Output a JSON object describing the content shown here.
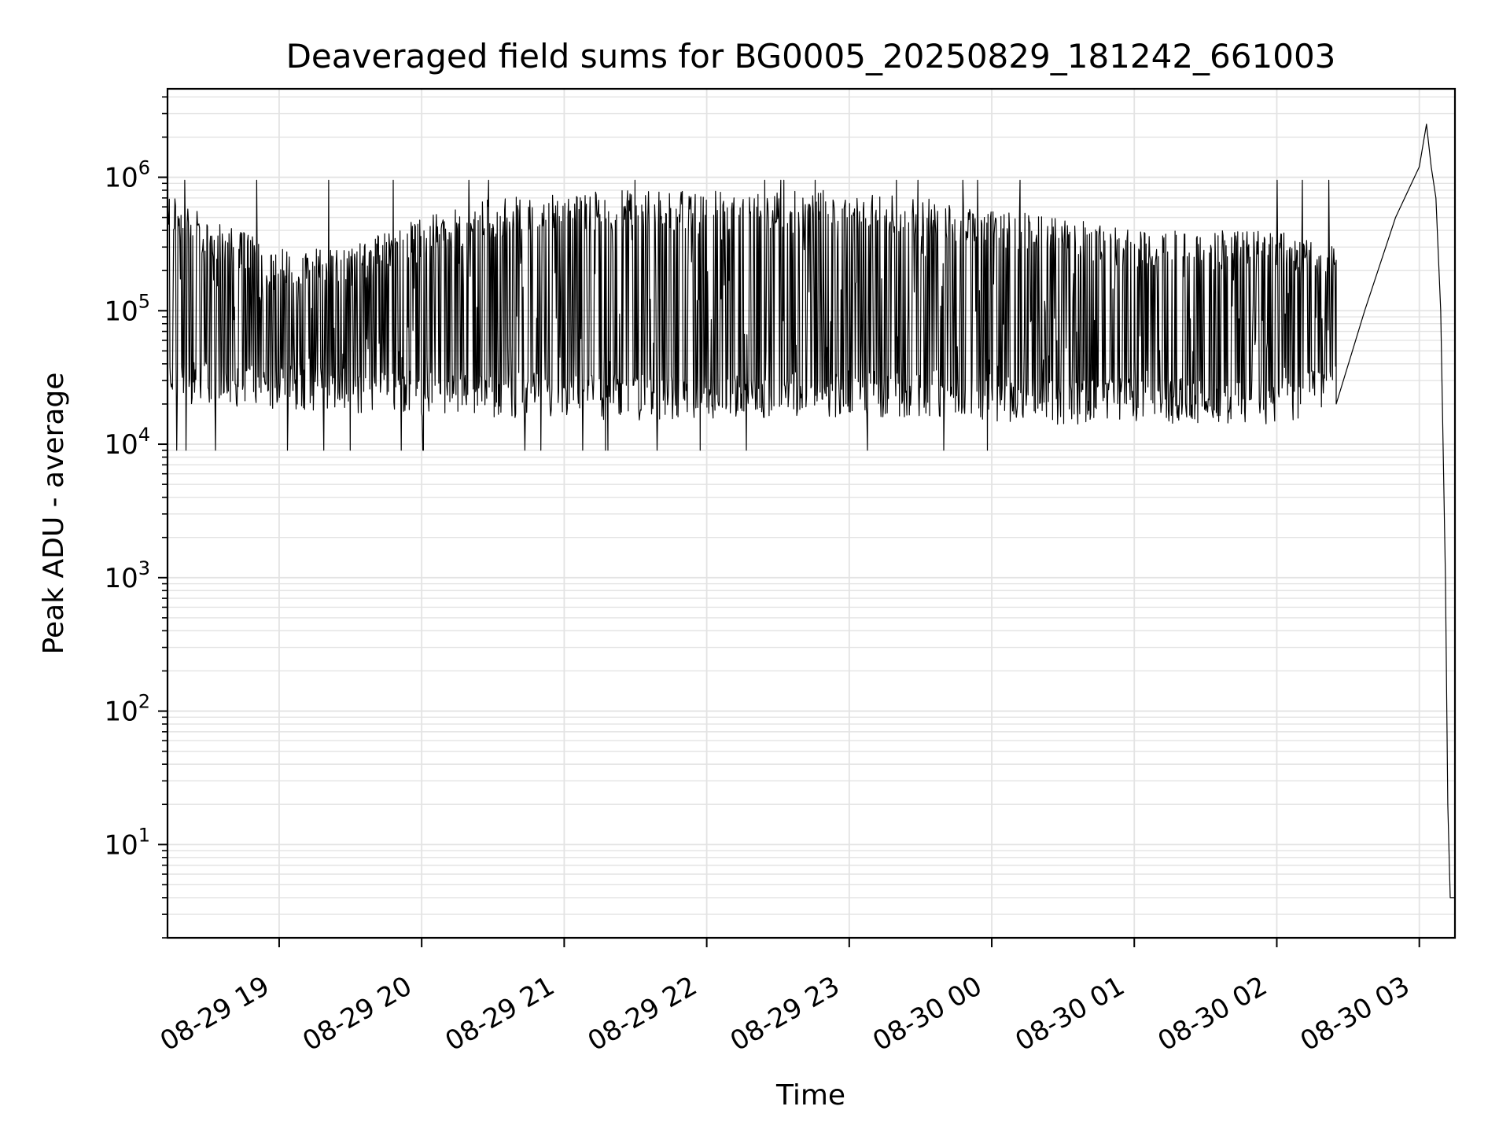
{
  "chart_data": {
    "type": "line",
    "title": "Deaveraged field sums for BG0005_20250829_181242_661003",
    "xlabel": "Time",
    "ylabel": "Peak ADU - average",
    "yscale": "log",
    "xlim": [
      "2025-08-29T18:13",
      "2025-08-30T03:15"
    ],
    "ylim": [
      2,
      4600000
    ],
    "grid": true,
    "line_color": "#000000",
    "grid_color": "#e3e3e3",
    "x_ticks": [
      {
        "t": "2025-08-29T19:00",
        "label": "08-29 19"
      },
      {
        "t": "2025-08-29T20:00",
        "label": "08-29 20"
      },
      {
        "t": "2025-08-29T21:00",
        "label": "08-29 21"
      },
      {
        "t": "2025-08-29T22:00",
        "label": "08-29 22"
      },
      {
        "t": "2025-08-29T23:00",
        "label": "08-29 23"
      },
      {
        "t": "2025-08-30T00:00",
        "label": "08-30 00"
      },
      {
        "t": "2025-08-30T01:00",
        "label": "08-30 01"
      },
      {
        "t": "2025-08-30T02:00",
        "label": "08-30 02"
      },
      {
        "t": "2025-08-30T03:00",
        "label": "08-30 03"
      }
    ],
    "y_ticks": [
      {
        "value": 10,
        "base": "10",
        "exp": "1"
      },
      {
        "value": 100,
        "base": "10",
        "exp": "2"
      },
      {
        "value": 1000,
        "base": "10",
        "exp": "3"
      },
      {
        "value": 10000,
        "base": "10",
        "exp": "4"
      },
      {
        "value": 100000,
        "base": "10",
        "exp": "5"
      },
      {
        "value": 1000000,
        "base": "10",
        "exp": "6"
      }
    ],
    "series": [
      {
        "envelope": [
          {
            "t": "2025-08-29T18:13",
            "low": 20000,
            "high": 800000
          },
          {
            "t": "2025-08-29T18:30",
            "low": 20000,
            "high": 500000
          },
          {
            "t": "2025-08-29T19:00",
            "low": 18000,
            "high": 300000
          },
          {
            "t": "2025-08-29T19:30",
            "low": 17000,
            "high": 300000
          },
          {
            "t": "2025-08-29T20:00",
            "low": 16000,
            "high": 500000
          },
          {
            "t": "2025-08-29T20:30",
            "low": 16000,
            "high": 700000
          },
          {
            "t": "2025-08-29T21:00",
            "low": 15000,
            "high": 800000
          },
          {
            "t": "2025-08-29T21:30",
            "low": 15000,
            "high": 800000
          },
          {
            "t": "2025-08-29T22:00",
            "low": 15000,
            "high": 800000
          },
          {
            "t": "2025-08-29T22:30",
            "low": 16000,
            "high": 800000
          },
          {
            "t": "2025-08-29T23:00",
            "low": 16000,
            "high": 800000
          },
          {
            "t": "2025-08-29T23:30",
            "low": 16000,
            "high": 700000
          },
          {
            "t": "2025-08-30T00:00",
            "low": 15000,
            "high": 600000
          },
          {
            "t": "2025-08-30T00:30",
            "low": 14000,
            "high": 500000
          },
          {
            "t": "2025-08-30T01:00",
            "low": 14000,
            "high": 400000
          },
          {
            "t": "2025-08-30T01:30",
            "low": 14000,
            "high": 400000
          },
          {
            "t": "2025-08-30T02:00",
            "low": 14000,
            "high": 400000
          },
          {
            "t": "2025-08-30T02:25",
            "low": 18000,
            "high": 300000
          }
        ],
        "trend": [
          {
            "t": "2025-08-30T02:25",
            "value": 20000
          },
          {
            "t": "2025-08-30T02:37",
            "value": 100000
          },
          {
            "t": "2025-08-30T02:50",
            "value": 500000
          },
          {
            "t": "2025-08-30T03:00",
            "value": 1200000
          },
          {
            "t": "2025-08-30T03:03",
            "value": 2500000
          },
          {
            "t": "2025-08-30T03:05",
            "value": 1200000
          },
          {
            "t": "2025-08-30T03:07",
            "value": 700000
          },
          {
            "t": "2025-08-30T03:09",
            "value": 100000
          },
          {
            "t": "2025-08-30T03:11",
            "value": 1000
          },
          {
            "t": "2025-08-30T03:12",
            "value": 20
          },
          {
            "t": "2025-08-30T03:13",
            "value": 4
          },
          {
            "t": "2025-08-30T03:15",
            "value": 4
          }
        ],
        "min_value": 9000,
        "max_spike": 950000
      }
    ]
  }
}
